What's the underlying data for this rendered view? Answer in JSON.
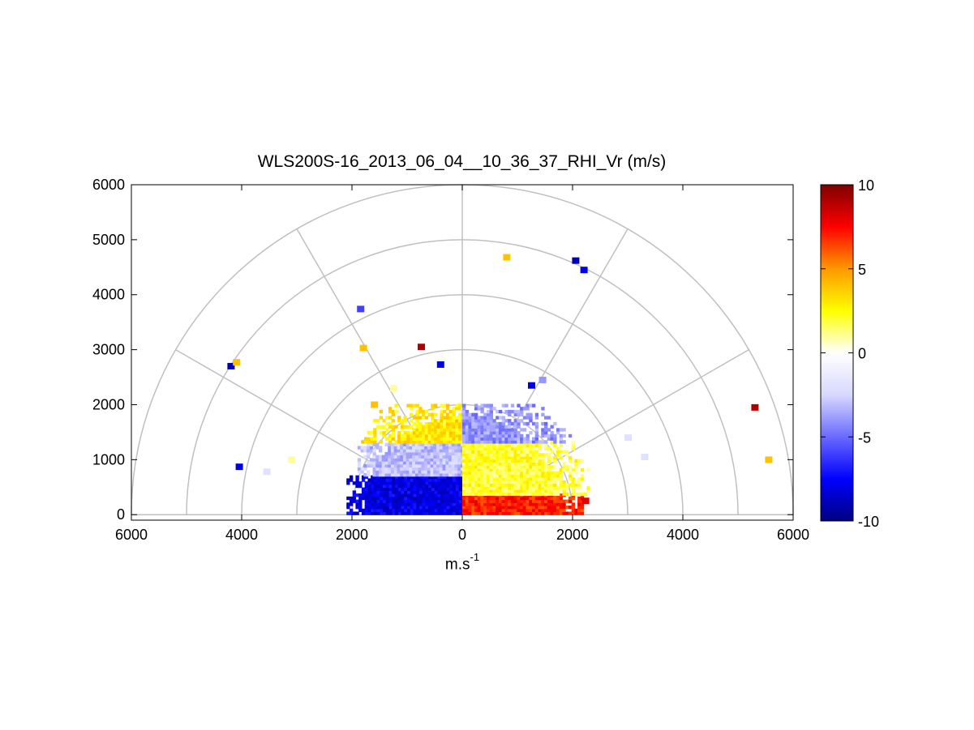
{
  "chart_data": {
    "type": "polar-rhi-scatter",
    "title": "WLS200S-16_2013_06_04__10_36_37_RHI_Vr (m/s)",
    "xlabel": "m.s",
    "xlabel_exponent": "-1",
    "ylabel": "",
    "xlim": [
      -6000,
      6000
    ],
    "ylim": [
      -100,
      6000
    ],
    "x_ticks": [
      {
        "value": -6000,
        "label": "6000"
      },
      {
        "value": -4000,
        "label": "4000"
      },
      {
        "value": -2000,
        "label": "2000"
      },
      {
        "value": 0,
        "label": "0"
      },
      {
        "value": 2000,
        "label": "2000"
      },
      {
        "value": 4000,
        "label": "4000"
      },
      {
        "value": 6000,
        "label": "6000"
      }
    ],
    "y_ticks": [
      {
        "value": 0,
        "label": "0"
      },
      {
        "value": 1000,
        "label": "1000"
      },
      {
        "value": 2000,
        "label": "2000"
      },
      {
        "value": 3000,
        "label": "3000"
      },
      {
        "value": 4000,
        "label": "4000"
      },
      {
        "value": 5000,
        "label": "5000"
      },
      {
        "value": 6000,
        "label": "6000"
      }
    ],
    "polar_grid": {
      "rings": [
        1000,
        2000,
        3000,
        4000,
        5000,
        6000
      ],
      "spokes_deg": [
        0,
        30,
        60,
        90,
        120,
        150,
        180
      ]
    },
    "grid": true,
    "colorbar": {
      "min": -10,
      "max": 10,
      "ticks": [
        {
          "value": 10,
          "label": "10"
        },
        {
          "value": 5,
          "label": "5"
        },
        {
          "value": 0,
          "label": "0"
        },
        {
          "value": -5,
          "label": "-5"
        },
        {
          "value": -10,
          "label": "-10"
        }
      ],
      "colors": [
        "#00007f",
        "#0000ff",
        "#6a6aff",
        "#d8d8ff",
        "#ffffff",
        "#ffff00",
        "#ff9900",
        "#ff0000",
        "#7f0000"
      ],
      "placement": "right"
    },
    "regions": [
      {
        "x_range": [
          -2100,
          0
        ],
        "y_range": [
          0,
          700
        ],
        "value": -8
      },
      {
        "x_range": [
          -1900,
          0
        ],
        "y_range": [
          700,
          1300
        ],
        "value": -3
      },
      {
        "x_range": [
          -2000,
          0
        ],
        "y_range": [
          1300,
          2000
        ],
        "value": 3
      },
      {
        "x_range": [
          0,
          2200
        ],
        "y_range": [
          0,
          350
        ],
        "value": 7
      },
      {
        "x_range": [
          0,
          2400
        ],
        "y_range": [
          350,
          1300
        ],
        "value": 2
      },
      {
        "x_range": [
          0,
          2300
        ],
        "y_range": [
          1300,
          2000
        ],
        "value": -4
      }
    ],
    "points": [
      {
        "x": -4200,
        "y": 2700,
        "v": -9
      },
      {
        "x": -4100,
        "y": 2770,
        "v": 4
      },
      {
        "x": -4050,
        "y": 870,
        "v": -8
      },
      {
        "x": -3550,
        "y": 780,
        "v": -2
      },
      {
        "x": -3100,
        "y": 1000,
        "v": 1
      },
      {
        "x": -1800,
        "y": 3030,
        "v": 4
      },
      {
        "x": -1850,
        "y": 3740,
        "v": -6
      },
      {
        "x": -1600,
        "y": 2000,
        "v": 4
      },
      {
        "x": -750,
        "y": 3050,
        "v": 9
      },
      {
        "x": -400,
        "y": 2730,
        "v": -8
      },
      {
        "x": -1250,
        "y": 2300,
        "v": 1
      },
      {
        "x": 800,
        "y": 4680,
        "v": 4
      },
      {
        "x": 2050,
        "y": 4620,
        "v": -9
      },
      {
        "x": 2200,
        "y": 4450,
        "v": -8
      },
      {
        "x": 1250,
        "y": 2350,
        "v": -8
      },
      {
        "x": 1450,
        "y": 2450,
        "v": -4
      },
      {
        "x": 3000,
        "y": 1400,
        "v": -2
      },
      {
        "x": 3300,
        "y": 1050,
        "v": -2
      },
      {
        "x": 5300,
        "y": 1950,
        "v": 9
      },
      {
        "x": 5550,
        "y": 1000,
        "v": 4
      },
      {
        "x": 2230,
        "y": 250,
        "v": 8
      }
    ]
  }
}
